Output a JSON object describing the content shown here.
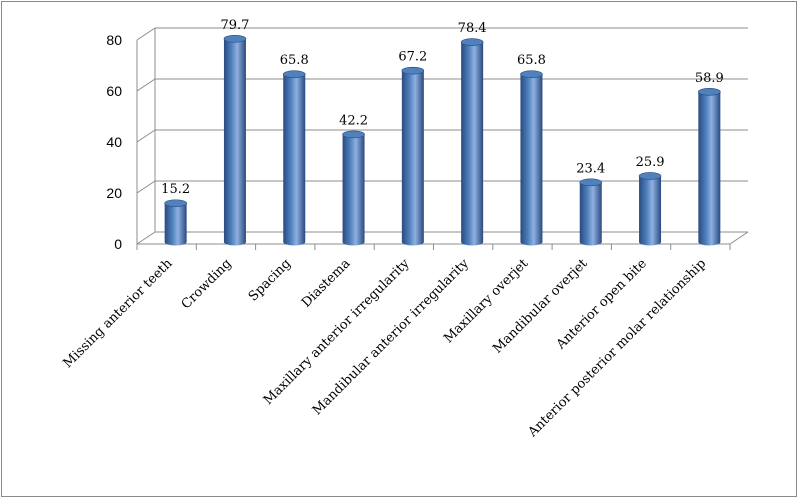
{
  "chart_data": {
    "type": "bar",
    "style": "3d-cylinder",
    "categories": [
      "Missing anterior teeth",
      "Crowding",
      "Spacing",
      "Diastema",
      "Maxillary anterior irregularity",
      "Mandibular anterior irregularity",
      "Maxillary overjet",
      "Mandibular overjet",
      "Anterior open bite",
      "Anterior posterior molar relationship"
    ],
    "values": [
      15.2,
      79.7,
      65.8,
      42.2,
      67.2,
      78.4,
      65.8,
      23.4,
      25.9,
      58.9
    ],
    "value_labels": [
      "15.2",
      "79.7",
      "65.8",
      "42.2",
      "67.2",
      "78.4",
      "65.8",
      "23.4",
      "25.9",
      "58.9"
    ],
    "y_ticks": [
      "0",
      "20",
      "40",
      "60",
      "80"
    ],
    "ylim": [
      0,
      80
    ],
    "grid": true,
    "legend": "none",
    "title": "",
    "xlabel": "",
    "ylabel": "",
    "colors": {
      "bar_dark": "#2a4a80",
      "bar_mid": "#4f81bd",
      "bar_light": "#8fb0e0",
      "grid": "#8c8c8c",
      "frame": "#8a8a8a"
    }
  }
}
